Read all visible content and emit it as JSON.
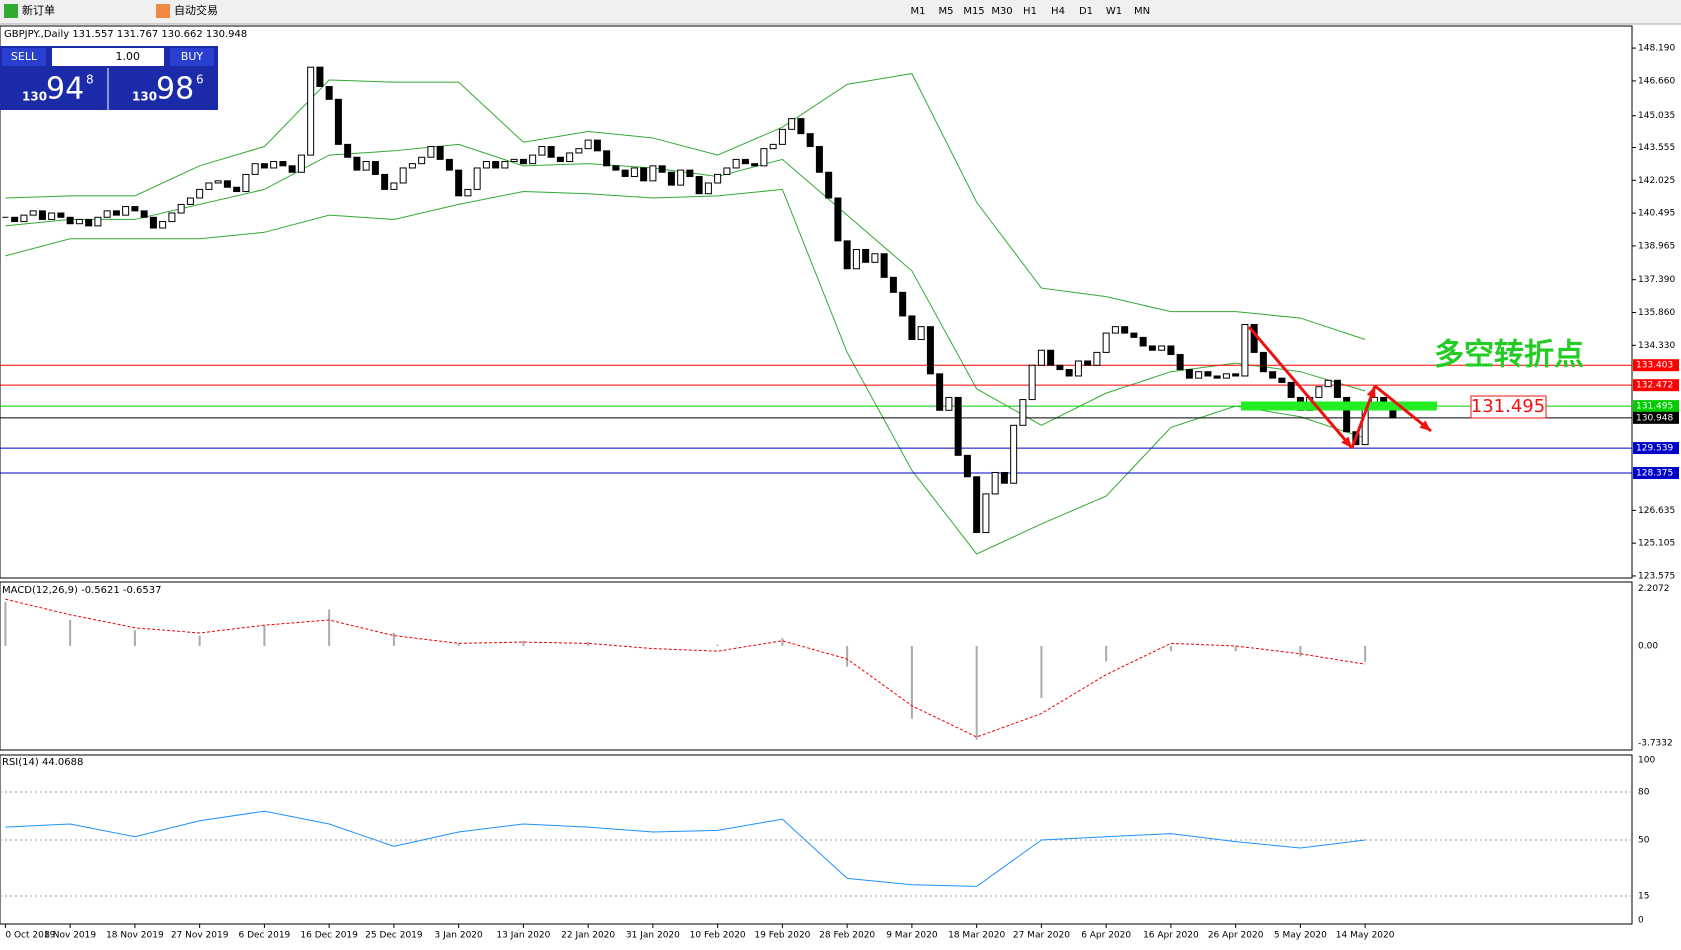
{
  "toolbar": {
    "new_order": "新订单",
    "auto_trading": "自动交易",
    "timeframes": [
      "M1",
      "M5",
      "M15",
      "M30",
      "H1",
      "H4",
      "D1",
      "W1",
      "MN"
    ]
  },
  "trade_panel": {
    "sell": "SELL",
    "buy": "BUY",
    "lots": "1.00",
    "sell_big": "130",
    "sell_pips": "94",
    "sell_frac": "8",
    "buy_big": "130",
    "buy_pips": "98",
    "buy_frac": "6"
  },
  "chart": {
    "symbol_info": "GBPJPY.,Daily  131.557 131.767 130.662 130.948",
    "ylim": [
      123.48,
      149.22
    ],
    "yticks": [
      {
        "value": 148.19,
        "label": "148.190"
      },
      {
        "value": 146.66,
        "label": "146.660"
      },
      145.035,
      143.555,
      142.025,
      140.495,
      138.965,
      {
        "value": 137.39,
        "label": "137.390"
      },
      {
        "value": 135.86,
        "label": "135.860"
      },
      {
        "value": 134.33,
        "label": "134.330"
      },
      126.635,
      125.105,
      123.575
    ],
    "close": [
      140.3,
      140.1,
      140.4,
      140.6,
      140.2,
      140.5,
      140.3,
      140.0,
      140.2,
      139.9,
      140.3,
      140.6,
      140.4,
      140.8,
      140.6,
      140.3,
      139.8,
      140.1,
      140.5,
      140.9,
      141.2,
      141.6,
      141.9,
      142.0,
      141.7,
      141.5,
      142.3,
      142.8,
      142.6,
      142.9,
      142.7,
      142.4,
      143.2,
      147.3,
      146.4,
      145.8,
      143.7,
      143.1,
      142.5,
      142.9,
      142.3,
      141.6,
      141.9,
      142.6,
      142.8,
      143.1,
      143.6,
      143.0,
      142.5,
      141.3,
      141.6,
      142.6,
      142.9,
      142.6,
      142.9,
      143.0,
      142.8,
      143.2,
      143.6,
      143.1,
      142.9,
      143.3,
      143.5,
      143.9,
      143.4,
      142.7,
      142.5,
      142.2,
      142.6,
      142.0,
      142.7,
      142.4,
      141.8,
      142.5,
      142.2,
      141.4,
      141.9,
      142.3,
      142.6,
      143.0,
      142.8,
      142.7,
      143.5,
      143.7,
      144.4,
      144.9,
      144.2,
      143.6,
      142.4,
      141.2,
      139.2,
      137.9,
      138.8,
      138.2,
      138.6,
      137.5,
      136.8,
      135.7,
      134.6,
      135.2,
      133.0,
      131.3,
      131.9,
      129.2,
      128.2,
      125.6,
      127.4,
      128.4,
      127.9,
      130.6,
      131.8,
      133.4,
      134.1,
      133.4,
      133.2,
      132.9,
      133.6,
      133.4,
      134.0,
      134.9,
      135.2,
      134.9,
      134.7,
      134.3,
      134.1,
      134.3,
      133.9,
      133.2,
      132.8,
      133.1,
      132.9,
      132.8,
      133.0,
      132.9,
      135.3,
      134.0,
      133.1,
      132.8,
      132.6,
      131.9,
      131.3,
      131.9,
      132.4,
      132.7,
      131.9,
      130.3,
      129.7,
      131.6,
      131.9,
      131.6,
      130.948
    ],
    "dates": [
      "0 Oct 2019",
      "8 Nov 2019",
      "18 Nov 2019",
      "27 Nov 2019",
      "6 Dec 2019",
      "16 Dec 2019",
      "25 Dec 2019",
      "3 Jan 2020",
      "13 Jan 2020",
      "22 Jan 2020",
      "31 Jan 2020",
      "10 Feb 2020",
      "19 Feb 2020",
      "28 Feb 2020",
      "9 Mar 2020",
      "18 Mar 2020",
      "27 Mar 2020",
      "6 Apr 2020",
      "16 Apr 2020",
      "26 Apr 2020",
      "5 May 2020",
      "14 May 2020"
    ],
    "band_upper": [
      141.2,
      141.3,
      141.3,
      142.7,
      143.6,
      146.7,
      146.6,
      146.6,
      143.8,
      144.3,
      144.0,
      143.2,
      144.5,
      146.5,
      147.0,
      141.0,
      137.0,
      136.6,
      135.9,
      135.9,
      135.6,
      134.6
    ],
    "band_middle": [
      139.9,
      140.2,
      140.2,
      140.9,
      141.6,
      143.2,
      143.4,
      143.7,
      142.7,
      142.8,
      142.6,
      142.2,
      143.0,
      140.4,
      137.8,
      132.3,
      130.6,
      132.1,
      133.1,
      133.5,
      133.1,
      132.2
    ],
    "band_lower": [
      138.5,
      139.3,
      139.3,
      139.3,
      139.6,
      140.4,
      140.2,
      140.9,
      141.5,
      141.4,
      141.2,
      141.3,
      141.6,
      134.0,
      128.5,
      124.6,
      126.0,
      127.3,
      130.5,
      131.5,
      131.0,
      130.0
    ],
    "levels": [
      {
        "value": 133.403,
        "color": "#ff0000"
      },
      {
        "value": 132.472,
        "color": "#ff0000"
      },
      {
        "value": 131.495,
        "color": "#00cc00"
      },
      {
        "value": 130.948,
        "color": "#000000"
      },
      {
        "value": 129.539,
        "color": "#0000cc"
      },
      {
        "value": 128.375,
        "color": "#0000cc"
      }
    ],
    "annotation_text": "多空转折点",
    "annotation_price": "131.495"
  },
  "macd": {
    "title": "MACD(12,26,9) -0.5621 -0.6537",
    "ylim": [
      -4.0,
      2.46
    ],
    "yticks": [
      2.2072,
      {
        "value": 0,
        "label": "0.00"
      },
      -3.7332
    ],
    "histogram": [
      1.7,
      1.0,
      0.6,
      0.4,
      0.8,
      1.4,
      0.5,
      0.1,
      0.2,
      0.15,
      0.0,
      0.05,
      0.3,
      -0.8,
      -2.8,
      -3.6,
      -2.0,
      -0.6,
      -0.2,
      -0.2,
      -0.4,
      -0.6
    ],
    "signal": [
      1.8,
      1.2,
      0.7,
      0.5,
      0.8,
      1.0,
      0.4,
      0.1,
      0.15,
      0.1,
      -0.1,
      -0.2,
      0.2,
      -0.5,
      -2.3,
      -3.5,
      -2.6,
      -1.1,
      0.1,
      0.0,
      -0.3,
      -0.7
    ]
  },
  "rsi": {
    "title": "RSI(14) 44.0688",
    "ylim": [
      -2.5,
      103.1
    ],
    "yticks": [
      100,
      80,
      50,
      15,
      0
    ],
    "values": [
      58,
      60,
      52,
      62,
      68,
      60,
      46,
      55,
      60,
      58,
      55,
      56,
      63,
      26,
      22,
      21,
      50,
      52,
      54,
      49,
      45,
      50
    ]
  }
}
